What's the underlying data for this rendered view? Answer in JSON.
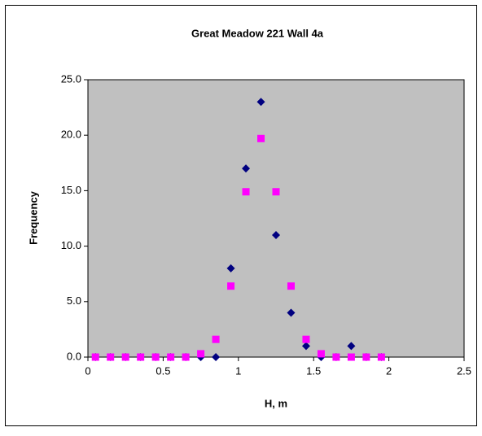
{
  "chart_data": {
    "type": "scatter",
    "title": "Great Meadow 221  Wall 4a",
    "x_label": "H, m",
    "y_label": "Frequency",
    "x": [
      0.05,
      0.15,
      0.25,
      0.35,
      0.45,
      0.55,
      0.65,
      0.75,
      0.85,
      0.95,
      1.05,
      1.15,
      1.25,
      1.35,
      1.45,
      1.55,
      1.65,
      1.75,
      1.85,
      1.95
    ],
    "series": [
      {
        "marker": "diamond",
        "color": "#000080",
        "values": [
          0,
          0,
          0,
          0,
          0,
          0,
          0,
          0,
          0,
          8,
          17,
          23,
          11,
          4,
          1,
          0,
          0,
          1,
          0,
          0
        ]
      },
      {
        "marker": "square",
        "color": "#ff00ff",
        "values": [
          0,
          0,
          0,
          0,
          0,
          0,
          0,
          0.3,
          1.6,
          6.4,
          14.9,
          19.7,
          14.9,
          6.4,
          1.6,
          0.3,
          0,
          0,
          0,
          0
        ]
      }
    ],
    "xlim": [
      0,
      2.5
    ],
    "xticks": [
      0,
      0.5,
      1,
      1.5,
      2,
      2.5
    ],
    "ylim": [
      0,
      25
    ],
    "yticks": [
      {
        "value": 0,
        "label": "0.0"
      },
      {
        "value": 5,
        "label": "5.0"
      },
      {
        "value": 10,
        "label": "10.0"
      },
      {
        "value": 15,
        "label": "15.0"
      },
      {
        "value": 20,
        "label": "20.0"
      },
      {
        "value": 25,
        "label": "25.0"
      }
    ],
    "plot_background": "#c0c0c0",
    "grid": false
  }
}
